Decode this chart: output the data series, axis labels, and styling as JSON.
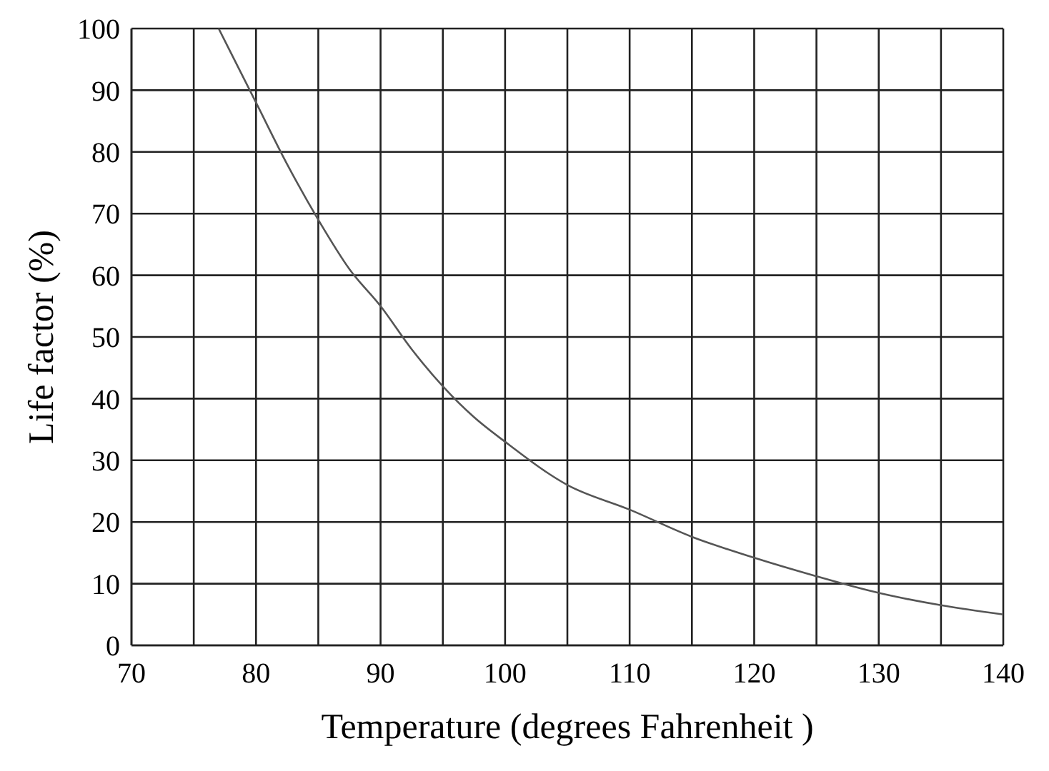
{
  "chart_data": {
    "type": "line",
    "xlabel": "Temperature (degrees Fahrenheit )",
    "ylabel": "Life factor (%)",
    "x": [
      77,
      78.5,
      80,
      82.5,
      85,
      87.5,
      90,
      92.5,
      95,
      97.5,
      100,
      105,
      110,
      115,
      120,
      125,
      130,
      135,
      140
    ],
    "series": [
      {
        "color": "#555555",
        "values": [
          100,
          94,
          88,
          78,
          69,
          61,
          55,
          48,
          42,
          37,
          33,
          26,
          22,
          17.6,
          14.2,
          11.2,
          8.5,
          6.5,
          5
        ]
      }
    ],
    "xlim": [
      70,
      140
    ],
    "xticks": [
      70,
      {
        "value": 75,
        "label": null
      },
      80,
      {
        "value": 85,
        "label": null
      },
      90,
      {
        "value": 95,
        "label": null
      },
      100,
      {
        "value": 105,
        "label": null
      },
      110,
      {
        "value": 115,
        "label": null
      },
      120,
      {
        "value": 125,
        "label": null
      },
      130,
      {
        "value": 135,
        "label": null
      },
      140
    ],
    "ylim": [
      0,
      100
    ],
    "yticks": [
      0,
      10,
      20,
      30,
      40,
      50,
      60,
      70,
      80,
      90,
      100
    ],
    "grid": true,
    "marker": "none",
    "line_style": "solid",
    "legend": false
  }
}
